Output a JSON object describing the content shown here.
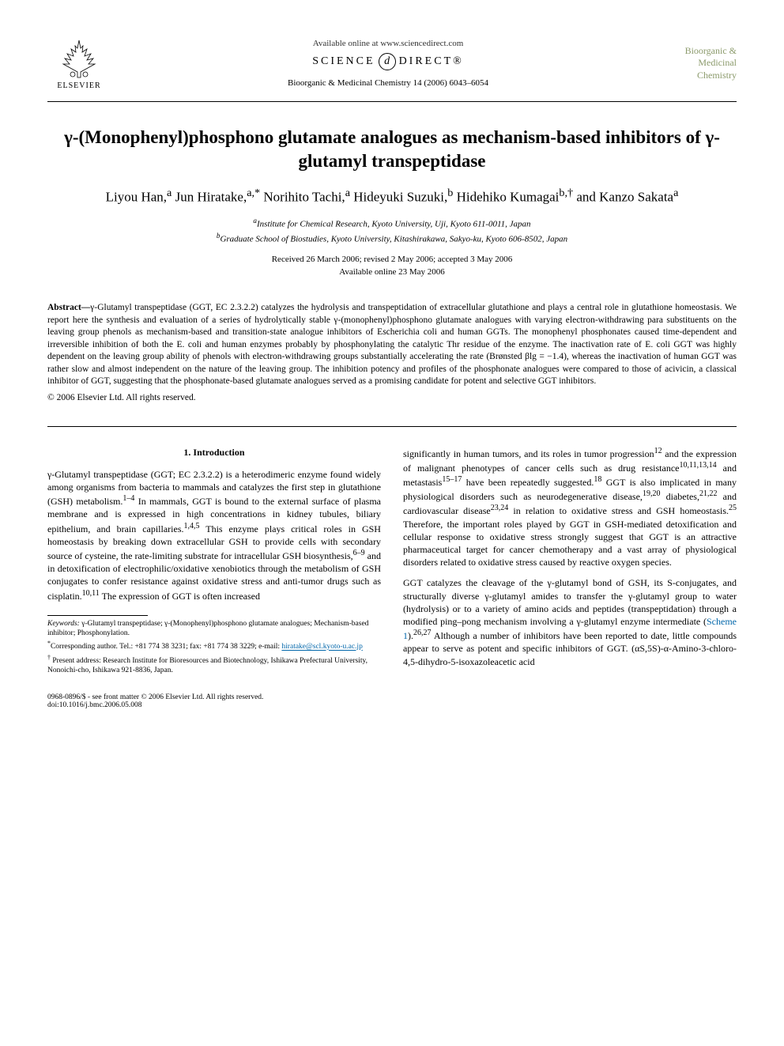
{
  "header": {
    "elsevier_label": "ELSEVIER",
    "available_online": "Available online at www.sciencedirect.com",
    "science_left": "SCIENCE",
    "science_d": "d",
    "science_right": "DIRECT®",
    "journal_ref": "Bioorganic & Medicinal Chemistry 14 (2006) 6043–6054",
    "journal_logo_l1": "Bioorganic &",
    "journal_logo_l2": "Medicinal",
    "journal_logo_l3": "Chemistry"
  },
  "title": "γ-(Monophenyl)phosphono glutamate analogues as mechanism-based inhibitors of γ-glutamyl transpeptidase",
  "authors_html": "Liyou Han,<sup>a</sup> Jun Hiratake,<sup>a,*</sup> Norihito Tachi,<sup>a</sup> Hideyuki Suzuki,<sup>b</sup> Hidehiko Kumagai<sup>b,†</sup> and Kanzo Sakata<sup>a</sup>",
  "affiliations": {
    "a": "Institute for Chemical Research, Kyoto University, Uji, Kyoto 611-0011, Japan",
    "b": "Graduate School of Biostudies, Kyoto University, Kitashirakawa, Sakyo-ku, Kyoto 606-8502, Japan"
  },
  "dates": {
    "received": "Received 26 March 2006; revised 2 May 2006; accepted 3 May 2006",
    "available": "Available online 23 May 2006"
  },
  "abstract": {
    "label": "Abstract—",
    "text": "γ-Glutamyl transpeptidase (GGT, EC 2.3.2.2) catalyzes the hydrolysis and transpeptidation of extracellular glutathione and plays a central role in glutathione homeostasis. We report here the synthesis and evaluation of a series of hydrolytically stable γ-(monophenyl)phosphono glutamate analogues with varying electron-withdrawing para substituents on the leaving group phenols as mechanism-based and transition-state analogue inhibitors of Escherichia coli and human GGTs. The monophenyl phosphonates caused time-dependent and irreversible inhibition of both the E. coli and human enzymes probably by phosphonylating the catalytic Thr residue of the enzyme. The inactivation rate of E. coli GGT was highly dependent on the leaving group ability of phenols with electron-withdrawing groups substantially accelerating the rate (Brønsted βlg = −1.4), whereas the inactivation of human GGT was rather slow and almost independent on the nature of the leaving group. The inhibition potency and profiles of the phosphonate analogues were compared to those of acivicin, a classical inhibitor of GGT, suggesting that the phosphonate-based glutamate analogues served as a promising candidate for potent and selective GGT inhibitors."
  },
  "copyright": "© 2006 Elsevier Ltd. All rights reserved.",
  "section1": {
    "heading": "1. Introduction",
    "left_para": "γ-Glutamyl transpeptidase (GGT; EC 2.3.2.2) is a heterodimeric enzyme found widely among organisms from bacteria to mammals and catalyzes the first step in glutathione (GSH) metabolism.<sup>1–4</sup> In mammals, GGT is bound to the external surface of plasma membrane and is expressed in high concentrations in kidney tubules, biliary epithelium, and brain capillaries.<sup>1,4,5</sup> This enzyme plays critical roles in GSH homeostasis by breaking down extracellular GSH to provide cells with secondary source of cysteine, the rate-limiting substrate for intracellular GSH biosynthesis,<sup>6–9</sup> and in detoxification of electrophilic/oxidative xenobiotics through the metabolism of GSH conjugates to confer resistance against oxidative stress and anti-tumor drugs such as cisplatin.<sup>10,11</sup> The expression of GGT is often increased",
    "right_para1": "significantly in human tumors, and its roles in tumor progression<sup>12</sup> and the expression of malignant phenotypes of cancer cells such as drug resistance<sup>10,11,13,14</sup> and metastasis<sup>15–17</sup> have been repeatedly suggested.<sup>18</sup> GGT is also implicated in many physiological disorders such as neurodegenerative disease,<sup>19,20</sup> diabetes,<sup>21,22</sup> and cardiovascular disease<sup>23,24</sup> in relation to oxidative stress and GSH homeostasis.<sup>25</sup> Therefore, the important roles played by GGT in GSH-mediated detoxification and cellular response to oxidative stress strongly suggest that GGT is an attractive pharmaceutical target for cancer chemotherapy and a vast array of physiological disorders related to oxidative stress caused by reactive oxygen species.",
    "right_para2": "GGT catalyzes the cleavage of the γ-glutamyl bond of GSH, its S-conjugates, and structurally diverse γ-glutamyl amides to transfer the γ-glutamyl group to water (hydrolysis) or to a variety of amino acids and peptides (transpeptidation) through a modified ping–pong mechanism involving a γ-glutamyl enzyme intermediate (<span class=\"scheme-link\">Scheme 1</span>).<sup>26,27</sup> Although a number of inhibitors have been reported to date, little compounds appear to serve as potent and specific inhibitors of GGT. (αS,5S)-α-Amino-3-chloro-4,5-dihydro-5-isoxazoleacetic acid"
  },
  "footnotes": {
    "keywords_label": "Keywords:",
    "keywords": " γ-Glutamyl transpeptidase; γ-(Monophenyl)phosphono glutamate analogues; Mechanism-based inhibitor; Phosphonylation.",
    "corresponding": "Corresponding author. Tel.: +81 774 38 3231; fax: +81 774 38 3229; e-mail: ",
    "email": "hiratake@scl.kyoto-u.ac.jp",
    "present_address": "Present address: Research Institute for Bioresources and Biotechnology, Ishikawa Prefectural University, Nonoichi-cho, Ishikawa 921-8836, Japan."
  },
  "bottom": {
    "left": "0968-0896/$ - see front matter © 2006 Elsevier Ltd. All rights reserved.",
    "doi": "doi:10.1016/j.bmc.2006.05.008"
  },
  "colors": {
    "background": "#ffffff",
    "text": "#000000",
    "journal_logo": "#8b9a6b",
    "link": "#0066aa"
  }
}
